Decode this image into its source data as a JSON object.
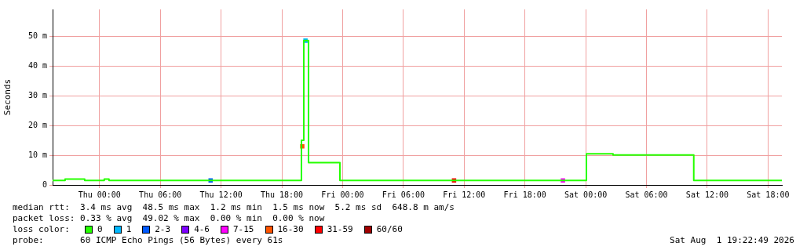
{
  "chart_data": {
    "type": "step",
    "ylabel": "Seconds",
    "legend_title": "loss color:",
    "legend": "bottom",
    "grid": true,
    "xlim": [
      "2026-07-29T19:22",
      "2026-08-01T19:22"
    ],
    "xticks": [
      {
        "value": "2026-07-30T00:00",
        "label": "Thu 00:00"
      },
      {
        "value": "2026-07-30T06:00",
        "label": "Thu 06:00"
      },
      {
        "value": "2026-07-30T12:00",
        "label": "Thu 12:00"
      },
      {
        "value": "2026-07-30T18:00",
        "label": "Thu 18:00"
      },
      {
        "value": "2026-07-31T00:00",
        "label": "Fri 00:00"
      },
      {
        "value": "2026-07-31T06:00",
        "label": "Fri 06:00"
      },
      {
        "value": "2026-07-31T12:00",
        "label": "Fri 12:00"
      },
      {
        "value": "2026-07-31T18:00",
        "label": "Fri 18:00"
      },
      {
        "value": "2026-08-01T00:00",
        "label": "Sat 00:00"
      },
      {
        "value": "2026-08-01T06:00",
        "label": "Sat 06:00"
      },
      {
        "value": "2026-08-01T12:00",
        "label": "Sat 12:00"
      },
      {
        "value": "2026-08-01T18:00",
        "label": "Sat 18:00"
      }
    ],
    "ylim": [
      0,
      59
    ],
    "yticks": [
      {
        "value": 0,
        "label": "0"
      },
      {
        "value": 10,
        "label": "10 m"
      },
      {
        "value": 20,
        "label": "20 m"
      },
      {
        "value": 30,
        "label": "30 m"
      },
      {
        "value": 40,
        "label": "40 m"
      },
      {
        "value": 50,
        "label": "50 m"
      }
    ],
    "series": [
      {
        "name": "0",
        "color": "#26ff00",
        "x": [
          "2026-07-29T19:22",
          "2026-07-29T20:36",
          "2026-07-29T22:32",
          "2026-07-30T00:28",
          "2026-07-30T00:56",
          "2026-07-30T19:56",
          "2026-07-30T20:10",
          "2026-07-30T20:38",
          "2026-07-30T23:44",
          "2026-08-01T00:04",
          "2026-08-01T02:42",
          "2026-08-01T10:40",
          "2026-08-01T19:22"
        ],
        "values": [
          1.5,
          2,
          1.5,
          2,
          1.5,
          15,
          48.5,
          7.5,
          1.5,
          10.5,
          10.1,
          1.5,
          1.5
        ]
      },
      {
        "name": "1",
        "color": "#00b8ff",
        "type": "scatter",
        "x": [
          "2026-07-30T20:20"
        ],
        "values": [
          48.5
        ]
      },
      {
        "name": "2-3",
        "color": "#0059ff",
        "type": "scatter",
        "x": [
          "2026-07-30T10:58"
        ],
        "values": [
          1.5
        ]
      },
      {
        "name": "4-6",
        "color": "#7e00ff",
        "type": "scatter"
      },
      {
        "name": "7-15",
        "color": "#ff00ff",
        "type": "scatter",
        "x": [
          "2026-07-31T21:45"
        ],
        "values": [
          1.5
        ]
      },
      {
        "name": "16-30",
        "color": "#ff5500",
        "type": "scatter",
        "x": [
          "2026-07-30T20:01"
        ],
        "values": [
          13
        ]
      },
      {
        "name": "31-59",
        "color": "#ff0000",
        "type": "scatter",
        "x": [
          "2026-07-31T11:00"
        ],
        "values": [
          1.5
        ]
      },
      {
        "name": "60/60",
        "color": "#a10000",
        "type": "scatter"
      }
    ],
    "annotations": [
      "median rtt:  3.4 ms avg  48.5 ms max  1.2 ms min  1.5 ms now  5.2 ms sd  648.8 m am/s",
      "packet loss: 0.33 % avg  49.02 % max  0.00 % min  0.00 % now",
      "probe:       60 ICMP Echo Pings (56 Bytes) every 61s",
      "Sat Aug  1 19:22:49 2026"
    ]
  }
}
